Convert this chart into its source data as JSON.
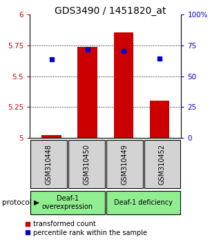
{
  "title": "GDS3490 / 1451820_at",
  "samples": [
    "GSM310448",
    "GSM310450",
    "GSM310449",
    "GSM310452"
  ],
  "bar_values": [
    5.02,
    5.74,
    5.855,
    5.3
  ],
  "bar_baseline": 5.0,
  "blue_values": [
    5.64,
    5.715,
    5.705,
    5.645
  ],
  "bar_color": "#cc0000",
  "blue_color": "#0000cc",
  "ylim_left": [
    5.0,
    6.0
  ],
  "ylim_right": [
    0,
    100
  ],
  "yticks_left": [
    5.0,
    5.25,
    5.5,
    5.75,
    6.0
  ],
  "yticks_left_labels": [
    "5",
    "5.25",
    "5.5",
    "5.75",
    "6"
  ],
  "yticks_right": [
    0,
    25,
    50,
    75,
    100
  ],
  "yticks_right_labels": [
    "0",
    "25",
    "50",
    "75",
    "100%"
  ],
  "protocol_color": "#90ee90",
  "sample_box_color": "#d3d3d3",
  "legend_red_label": "transformed count",
  "legend_blue_label": "percentile rank within the sample",
  "bar_width": 0.55,
  "grid_ticks": [
    5.25,
    5.5,
    5.75
  ],
  "figsize": [
    3.2,
    3.54
  ],
  "dpi": 100
}
